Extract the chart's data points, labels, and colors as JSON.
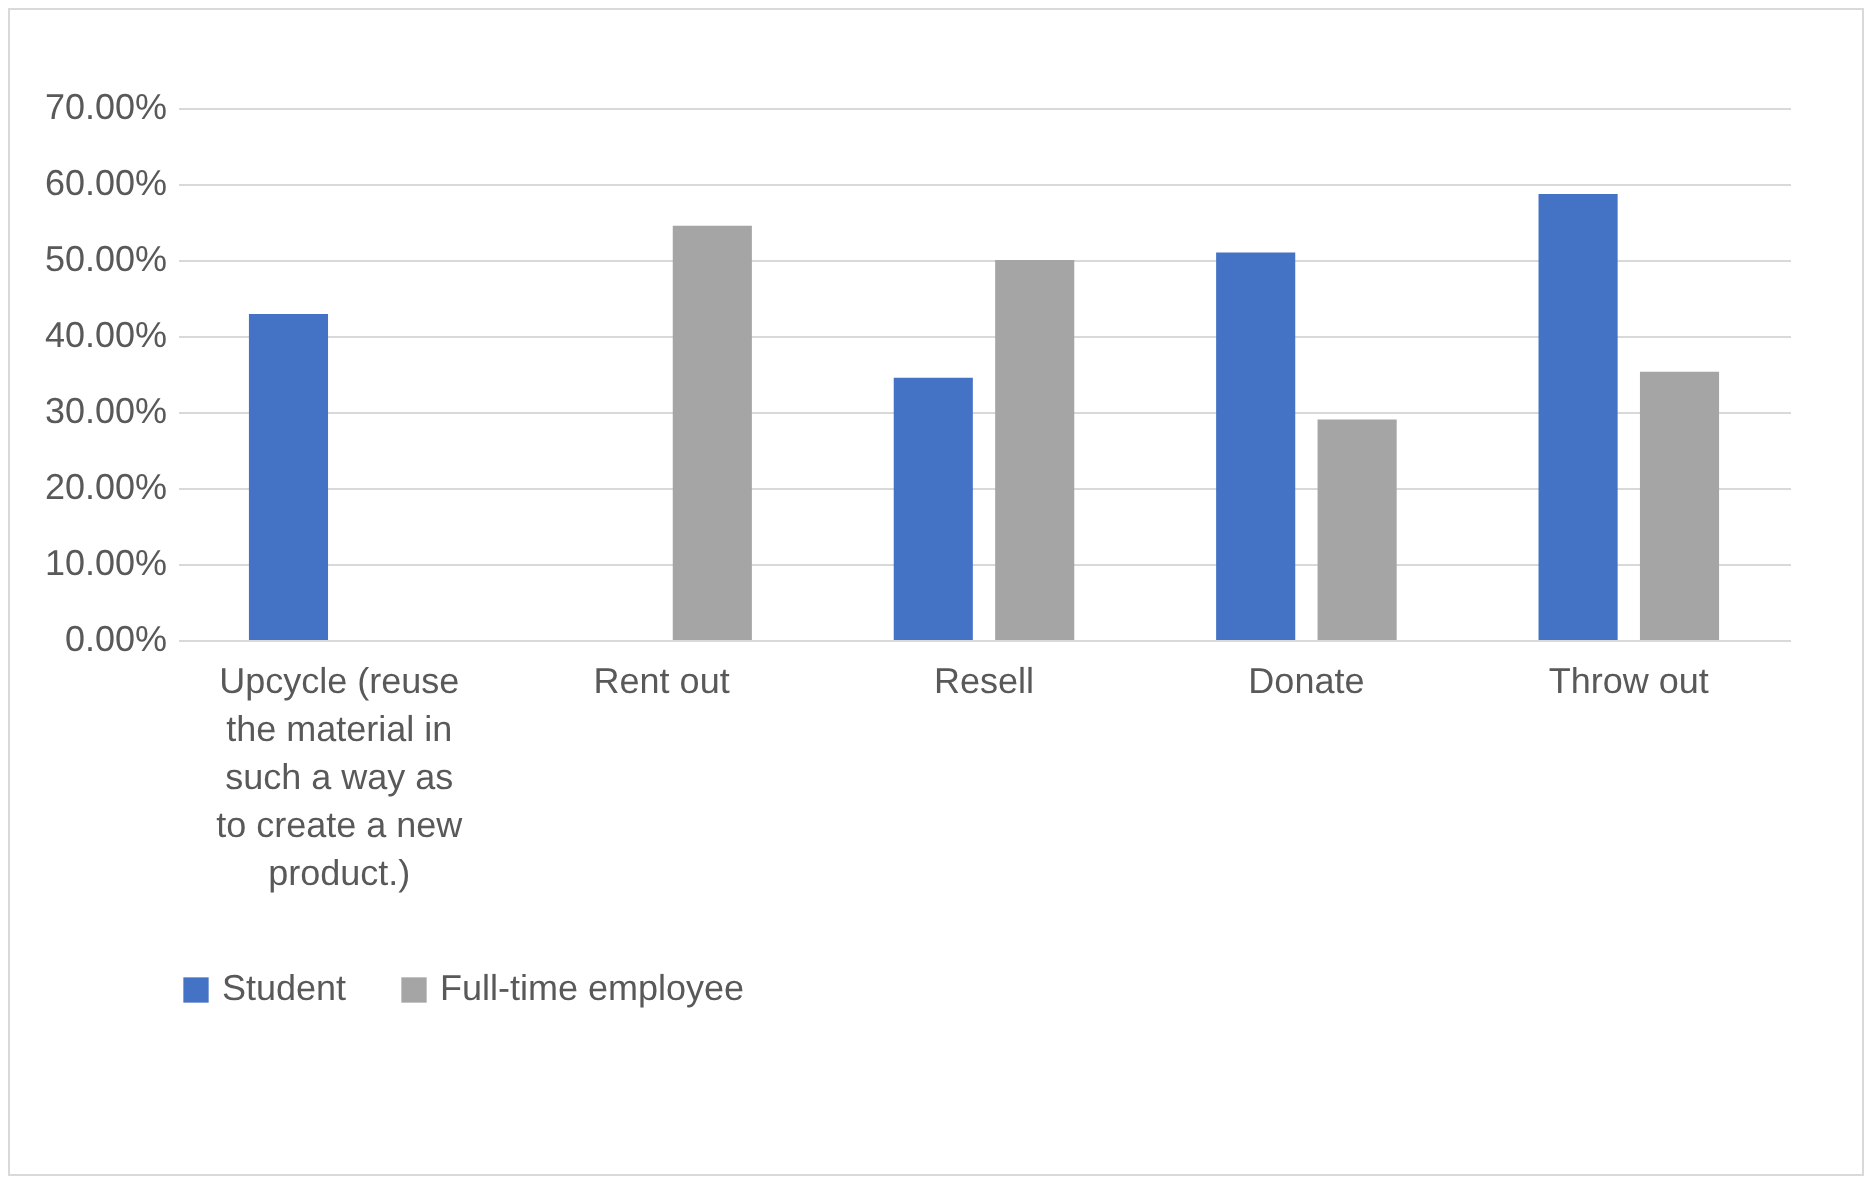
{
  "chart_data": {
    "type": "bar",
    "categories": [
      "Upcycle (reuse the material in such a way as to create a new product.)",
      "Rent out",
      "Resell",
      "Donate",
      "Throw out"
    ],
    "series": [
      {
        "name": "Student",
        "color": "#4472c4",
        "values": [
          42.9,
          0,
          34.5,
          51,
          58.7
        ]
      },
      {
        "name": "Full-time employee",
        "color": "#a5a5a5",
        "values": [
          0,
          54.5,
          50,
          29,
          35.3
        ]
      }
    ],
    "ylim": [
      0,
      70
    ],
    "yticks": [
      {
        "value": 0,
        "label": "0.00%"
      },
      {
        "value": 10,
        "label": "10.00%"
      },
      {
        "value": 20,
        "label": "20.00%"
      },
      {
        "value": 30,
        "label": "30.00%"
      },
      {
        "value": 40,
        "label": "40.00%"
      },
      {
        "value": 50,
        "label": "50.00%"
      },
      {
        "value": 60,
        "label": "60.00%"
      },
      {
        "value": 70,
        "label": "70.00%"
      }
    ],
    "grid": "y",
    "legend": "bottom"
  }
}
